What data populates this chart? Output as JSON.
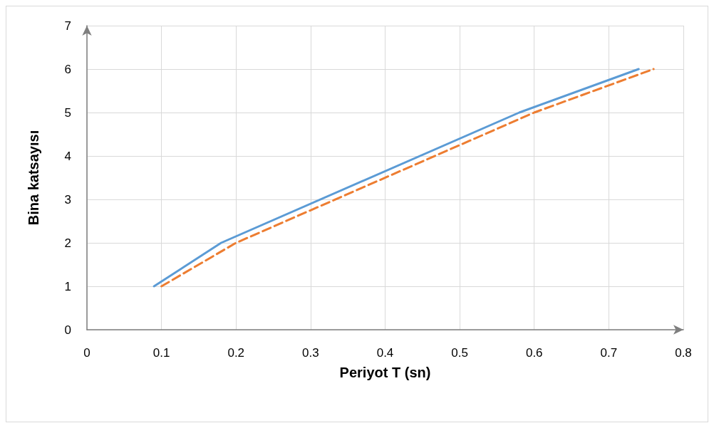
{
  "chart_data": {
    "type": "line",
    "xlabel": "Periyot T (sn)",
    "ylabel": "Bina katsayısı",
    "xlim": [
      0,
      0.8
    ],
    "xticks": [
      0,
      0.1,
      0.2,
      0.3,
      0.4,
      0.5,
      0.6,
      0.7,
      0.8
    ],
    "ylim": [
      0,
      7
    ],
    "yticks": [
      0,
      1,
      2,
      3,
      4,
      5,
      6,
      7
    ],
    "grid": true,
    "marker": "none",
    "series": [
      {
        "color": "#5b9bd5",
        "line_style": "solid",
        "x": [
          0.09,
          0.18,
          0.58,
          0.74
        ],
        "values": [
          1,
          2,
          5,
          6
        ]
      },
      {
        "color": "#ed7d31",
        "line_style": "dashed",
        "x": [
          0.1,
          0.2,
          0.6,
          0.76
        ],
        "values": [
          1,
          2,
          5,
          6
        ]
      }
    ]
  }
}
